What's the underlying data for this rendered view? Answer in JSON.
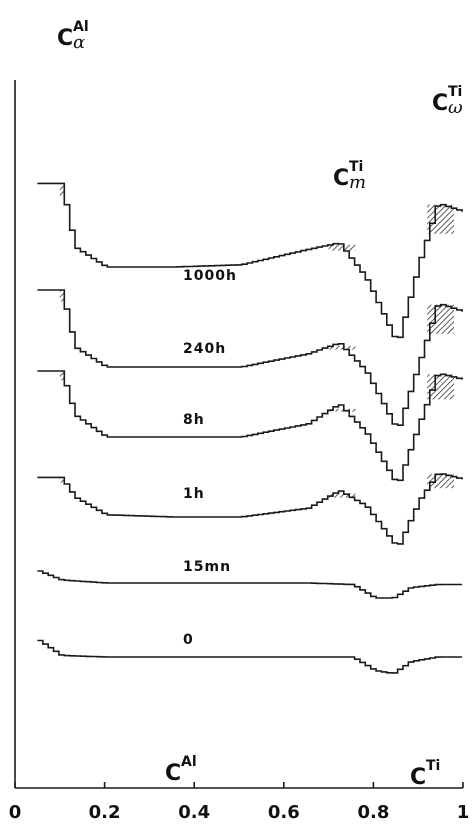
{
  "chart_data": {
    "type": "line",
    "title": "",
    "xlabel": "",
    "ylabel": "",
    "xlim": [
      0,
      1
    ],
    "x_ticks": [
      "0",
      "0.2",
      "0.4",
      "0.6",
      "0.8",
      "1"
    ],
    "series": [
      {
        "name": "1000h",
        "x": [
          0.1,
          0.13,
          0.2,
          0.35,
          0.5,
          0.65,
          0.72,
          0.78,
          0.85,
          0.9,
          0.94,
          1.0
        ],
        "y": [
          0.93,
          0.64,
          0.55,
          0.55,
          0.56,
          0.63,
          0.66,
          0.5,
          0.2,
          0.58,
          0.84,
          0.8
        ]
      },
      {
        "name": "240h",
        "x": [
          0.1,
          0.13,
          0.2,
          0.35,
          0.5,
          0.65,
          0.72,
          0.78,
          0.85,
          0.9,
          0.94,
          1.0
        ],
        "y": [
          0.82,
          0.56,
          0.47,
          0.47,
          0.47,
          0.53,
          0.58,
          0.45,
          0.18,
          0.5,
          0.76,
          0.72
        ]
      },
      {
        "name": "8h",
        "x": [
          0.1,
          0.13,
          0.2,
          0.35,
          0.5,
          0.65,
          0.72,
          0.78,
          0.85,
          0.9,
          0.94,
          1.0
        ],
        "y": [
          0.68,
          0.48,
          0.38,
          0.38,
          0.38,
          0.44,
          0.53,
          0.4,
          0.16,
          0.45,
          0.67,
          0.64
        ]
      },
      {
        "name": "1h",
        "x": [
          0.1,
          0.13,
          0.2,
          0.35,
          0.5,
          0.65,
          0.72,
          0.78,
          0.85,
          0.9,
          0.94,
          1.0
        ],
        "y": [
          0.46,
          0.37,
          0.29,
          0.28,
          0.28,
          0.32,
          0.4,
          0.33,
          0.14,
          0.36,
          0.48,
          0.45
        ]
      },
      {
        "name": "15mn",
        "x": [
          0.05,
          0.1,
          0.2,
          0.35,
          0.5,
          0.65,
          0.75,
          0.8,
          0.84,
          0.88,
          0.94,
          1.0
        ],
        "y": [
          0.28,
          0.22,
          0.2,
          0.2,
          0.2,
          0.2,
          0.19,
          0.1,
          0.1,
          0.17,
          0.19,
          0.19
        ]
      },
      {
        "name": "0",
        "x": [
          0.05,
          0.1,
          0.2,
          0.35,
          0.5,
          0.65,
          0.75,
          0.8,
          0.84,
          0.88,
          0.94,
          1.0
        ],
        "y": [
          0.22,
          0.12,
          0.11,
          0.11,
          0.11,
          0.11,
          0.11,
          0.02,
          0.0,
          0.08,
          0.11,
          0.11
        ]
      }
    ],
    "annotations": [
      {
        "main": "C",
        "sup": "Al",
        "sub": "α",
        "x": 0.1
      },
      {
        "main": "C",
        "sup": "Ti",
        "sub": "m",
        "x": 0.72
      },
      {
        "main": "C",
        "sup": "Ti",
        "sub": "ω",
        "x": 0.94
      },
      {
        "main": "C",
        "sup": "Al",
        "sub": "",
        "x": 0.2
      },
      {
        "main": "C",
        "sup": "Ti",
        "sub": "",
        "x": 0.95
      }
    ],
    "axis_break_between": [
      "0.4",
      "0.6"
    ],
    "shading": "hatched areas under peaks at 0.10, 0.72 and 0.94",
    "grid": false,
    "legend": "none (labels placed on curves)"
  }
}
